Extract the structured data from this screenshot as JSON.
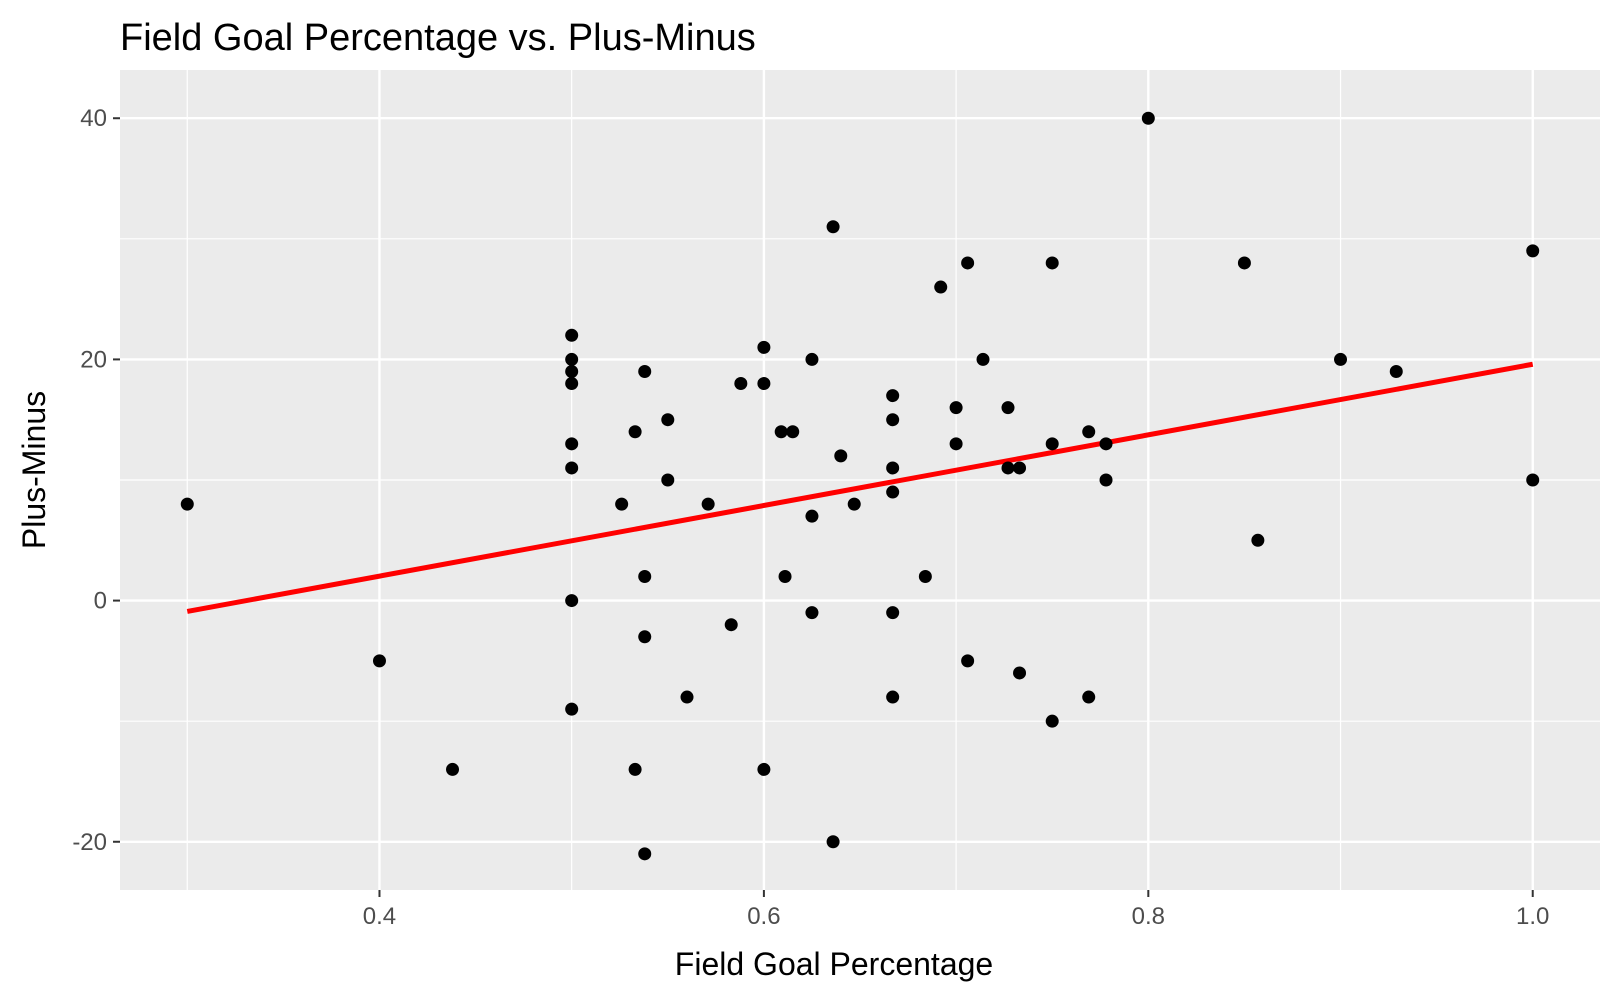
{
  "chart_data": {
    "type": "scatter",
    "title": "Field Goal Percentage vs. Plus-Minus",
    "xlabel": "Field Goal Percentage",
    "ylabel": "Plus-Minus",
    "xlim": [
      0.265,
      1.035
    ],
    "ylim": [
      -24,
      44
    ],
    "x_ticks": [
      0.4,
      0.6,
      0.8,
      1.0
    ],
    "x_tick_labels": [
      "0.4",
      "0.6",
      "0.8",
      "1.0"
    ],
    "y_ticks": [
      -20,
      0,
      20,
      40
    ],
    "y_tick_labels": [
      "-20",
      "0",
      "20",
      "40"
    ],
    "grid": true,
    "legend": "none",
    "colors": {
      "panel": "#ebebeb",
      "grid": "#ffffff",
      "point": "#000000",
      "trend": "#ff0000"
    },
    "points": [
      {
        "x": 0.3,
        "y": 8
      },
      {
        "x": 0.4,
        "y": -5
      },
      {
        "x": 0.438,
        "y": -14
      },
      {
        "x": 0.5,
        "y": 22
      },
      {
        "x": 0.5,
        "y": 20
      },
      {
        "x": 0.5,
        "y": 19
      },
      {
        "x": 0.5,
        "y": 18
      },
      {
        "x": 0.5,
        "y": 13
      },
      {
        "x": 0.5,
        "y": 11
      },
      {
        "x": 0.5,
        "y": 0
      },
      {
        "x": 0.5,
        "y": -9
      },
      {
        "x": 0.526,
        "y": 8
      },
      {
        "x": 0.533,
        "y": 14
      },
      {
        "x": 0.533,
        "y": -14
      },
      {
        "x": 0.538,
        "y": 19
      },
      {
        "x": 0.538,
        "y": 2
      },
      {
        "x": 0.538,
        "y": -3
      },
      {
        "x": 0.538,
        "y": -21
      },
      {
        "x": 0.55,
        "y": 15
      },
      {
        "x": 0.55,
        "y": 10
      },
      {
        "x": 0.56,
        "y": -8
      },
      {
        "x": 0.571,
        "y": 8
      },
      {
        "x": 0.583,
        "y": -2
      },
      {
        "x": 0.588,
        "y": 18
      },
      {
        "x": 0.6,
        "y": 21
      },
      {
        "x": 0.6,
        "y": 18
      },
      {
        "x": 0.6,
        "y": -14
      },
      {
        "x": 0.609,
        "y": 14
      },
      {
        "x": 0.611,
        "y": 2
      },
      {
        "x": 0.615,
        "y": 14
      },
      {
        "x": 0.625,
        "y": 20
      },
      {
        "x": 0.625,
        "y": 7
      },
      {
        "x": 0.625,
        "y": -1
      },
      {
        "x": 0.636,
        "y": 31
      },
      {
        "x": 0.636,
        "y": -20
      },
      {
        "x": 0.64,
        "y": 12
      },
      {
        "x": 0.647,
        "y": 8
      },
      {
        "x": 0.667,
        "y": 17
      },
      {
        "x": 0.667,
        "y": 15
      },
      {
        "x": 0.667,
        "y": 11
      },
      {
        "x": 0.667,
        "y": 9
      },
      {
        "x": 0.667,
        "y": -1
      },
      {
        "x": 0.667,
        "y": -8
      },
      {
        "x": 0.684,
        "y": 2
      },
      {
        "x": 0.692,
        "y": 26
      },
      {
        "x": 0.7,
        "y": 16
      },
      {
        "x": 0.7,
        "y": 13
      },
      {
        "x": 0.706,
        "y": 28
      },
      {
        "x": 0.706,
        "y": -5
      },
      {
        "x": 0.714,
        "y": 20
      },
      {
        "x": 0.727,
        "y": 16
      },
      {
        "x": 0.727,
        "y": 11
      },
      {
        "x": 0.733,
        "y": 11
      },
      {
        "x": 0.733,
        "y": -6
      },
      {
        "x": 0.75,
        "y": 28
      },
      {
        "x": 0.75,
        "y": 13
      },
      {
        "x": 0.75,
        "y": -10
      },
      {
        "x": 0.769,
        "y": 14
      },
      {
        "x": 0.769,
        "y": -8
      },
      {
        "x": 0.778,
        "y": 13
      },
      {
        "x": 0.778,
        "y": 10
      },
      {
        "x": 0.8,
        "y": 40
      },
      {
        "x": 0.85,
        "y": 28
      },
      {
        "x": 0.857,
        "y": 5
      },
      {
        "x": 0.9,
        "y": 20
      },
      {
        "x": 0.929,
        "y": 19
      },
      {
        "x": 1.0,
        "y": 29
      },
      {
        "x": 1.0,
        "y": 10
      }
    ],
    "trend_line": {
      "x": [
        0.3,
        1.0
      ],
      "y": [
        -0.9,
        19.6
      ]
    }
  }
}
